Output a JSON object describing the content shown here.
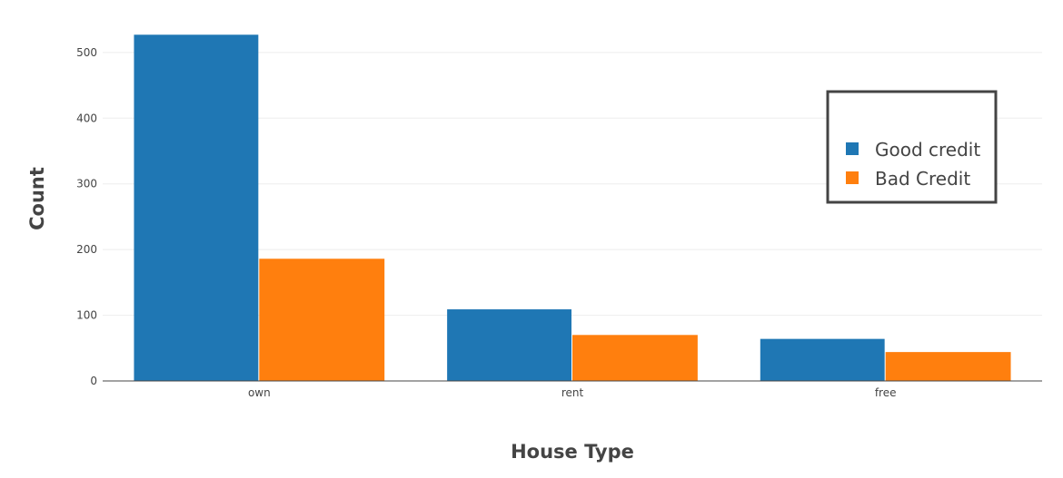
{
  "chart_data": {
    "type": "bar",
    "title": "",
    "xlabel": "House Type",
    "ylabel": "Count",
    "categories": [
      "own",
      "rent",
      "free"
    ],
    "series": [
      {
        "name": "Good credit",
        "color": "#1f77b4",
        "values": [
          527,
          109,
          64
        ]
      },
      {
        "name": "Bad Credit",
        "color": "#ff7f0e",
        "values": [
          186,
          70,
          44
        ]
      }
    ],
    "ylim": [
      0,
      555
    ],
    "yticks": [
      0,
      100,
      200,
      300,
      400,
      500
    ],
    "grid": true,
    "legend_position": "right"
  }
}
